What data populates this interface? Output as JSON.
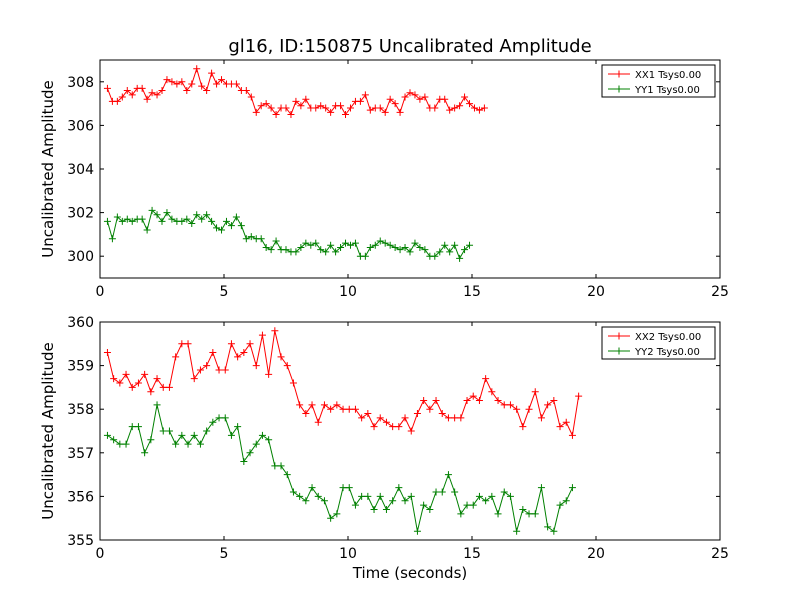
{
  "figure": {
    "title": "gl16, ID:150875 Uncalibrated Amplitude",
    "xlabel": "Time (seconds)"
  },
  "colors": {
    "red": "#ff0000",
    "green": "#008000",
    "frame": "#000000"
  },
  "chart_data": [
    {
      "type": "line",
      "ylabel": "Uncalibrated Amplitude",
      "xlim": [
        0,
        25
      ],
      "ylim": [
        299,
        309
      ],
      "xticks": [
        0,
        5,
        10,
        15,
        20,
        25
      ],
      "yticks": [
        300,
        302,
        304,
        306,
        308
      ],
      "legend": "top-right",
      "series": [
        {
          "name": "XX1 Tsys0.00",
          "color": "#ff0000",
          "x0": 0.3,
          "dx": 0.2,
          "values": [
            307.7,
            307.1,
            307.1,
            307.3,
            307.6,
            307.4,
            307.7,
            307.7,
            307.2,
            307.5,
            307.4,
            307.6,
            308.1,
            308.0,
            307.9,
            308.0,
            307.6,
            307.9,
            308.6,
            307.8,
            307.6,
            308.4,
            307.9,
            308.1,
            307.9,
            307.9,
            307.9,
            307.6,
            307.6,
            307.3,
            306.6,
            306.9,
            307.0,
            306.8,
            306.5,
            306.8,
            306.8,
            306.5,
            307.1,
            306.9,
            307.2,
            306.8,
            306.8,
            306.9,
            306.8,
            306.6,
            306.9,
            306.9,
            306.5,
            306.8,
            307.1,
            307.1,
            307.4,
            306.7,
            306.8,
            306.8,
            306.6,
            307.2,
            307.0,
            306.6,
            307.3,
            307.5,
            307.4,
            307.2,
            307.3,
            306.8,
            306.8,
            307.2,
            307.2,
            306.7,
            306.8,
            306.9,
            307.3,
            307.0,
            306.8,
            306.7,
            306.8
          ]
        },
        {
          "name": "YY1 Tsys0.00",
          "color": "#008000",
          "x0": 0.3,
          "dx": 0.2,
          "values": [
            301.6,
            300.8,
            301.8,
            301.6,
            301.7,
            301.6,
            301.7,
            301.7,
            301.2,
            302.1,
            301.9,
            301.6,
            302.0,
            301.7,
            301.6,
            301.6,
            301.7,
            301.5,
            301.9,
            301.7,
            301.9,
            301.6,
            301.3,
            301.2,
            301.6,
            301.4,
            301.8,
            301.4,
            300.8,
            300.9,
            300.8,
            300.8,
            300.4,
            300.3,
            300.7,
            300.3,
            300.3,
            300.2,
            300.2,
            300.4,
            300.6,
            300.5,
            300.6,
            300.3,
            300.2,
            300.5,
            300.2,
            300.4,
            300.6,
            300.5,
            300.6,
            300.0,
            300.0,
            300.4,
            300.5,
            300.7,
            300.6,
            300.5,
            300.4,
            300.3,
            300.4,
            300.2,
            300.6,
            300.4,
            300.3,
            300.0,
            300.0,
            300.2,
            300.5,
            300.2,
            300.5,
            299.9,
            300.3,
            300.5
          ]
        }
      ]
    },
    {
      "type": "line",
      "ylabel": "Uncalibrated Amplitude",
      "xlabel": "Time (seconds)",
      "xlim": [
        0,
        25
      ],
      "ylim": [
        355,
        360
      ],
      "xticks": [
        0,
        5,
        10,
        15,
        20,
        25
      ],
      "yticks": [
        355,
        356,
        357,
        358,
        359,
        360
      ],
      "legend": "top-right",
      "series": [
        {
          "name": "XX2 Tsys0.00",
          "color": "#ff0000",
          "x0": 0.3,
          "dx": 0.25,
          "values": [
            359.3,
            358.7,
            358.6,
            358.8,
            358.5,
            358.6,
            358.8,
            358.4,
            358.7,
            358.5,
            358.5,
            359.2,
            359.5,
            359.5,
            358.7,
            358.9,
            359.0,
            359.3,
            358.9,
            358.9,
            359.5,
            359.2,
            359.3,
            359.5,
            359.0,
            359.7,
            358.8,
            359.8,
            359.2,
            359.0,
            358.6,
            358.1,
            357.9,
            358.1,
            357.7,
            358.1,
            358.0,
            358.1,
            358.0,
            358.0,
            358.0,
            357.8,
            357.9,
            357.6,
            357.8,
            357.7,
            357.6,
            357.6,
            357.8,
            357.5,
            357.9,
            358.2,
            358.0,
            358.2,
            357.9,
            357.8,
            357.8,
            357.8,
            358.2,
            358.3,
            358.2,
            358.7,
            358.4,
            358.2,
            358.1,
            358.1,
            358.0,
            357.6,
            358.0,
            358.4,
            357.8,
            358.1,
            358.2,
            357.6,
            357.7,
            357.4,
            358.3
          ]
        },
        {
          "name": "YY2 Tsys0.00",
          "color": "#008000",
          "x0": 0.3,
          "dx": 0.25,
          "values": [
            357.4,
            357.3,
            357.2,
            357.2,
            357.6,
            357.6,
            357.0,
            357.3,
            358.1,
            357.5,
            357.5,
            357.2,
            357.4,
            357.2,
            357.4,
            357.2,
            357.5,
            357.7,
            357.8,
            357.8,
            357.4,
            357.6,
            356.8,
            357.0,
            357.2,
            357.4,
            357.3,
            356.7,
            356.7,
            356.5,
            356.1,
            356.0,
            355.9,
            356.2,
            356.0,
            355.9,
            355.5,
            355.6,
            356.2,
            356.2,
            355.8,
            356.0,
            356.0,
            355.7,
            356.0,
            355.7,
            355.9,
            356.2,
            355.9,
            356.0,
            355.2,
            355.8,
            355.7,
            356.1,
            356.1,
            356.5,
            356.1,
            355.6,
            355.8,
            355.8,
            356.0,
            355.9,
            356.0,
            355.6,
            356.1,
            356.0,
            355.2,
            355.7,
            355.6,
            355.6,
            356.2,
            355.3,
            355.2,
            355.8,
            355.9,
            356.2
          ]
        }
      ]
    }
  ]
}
